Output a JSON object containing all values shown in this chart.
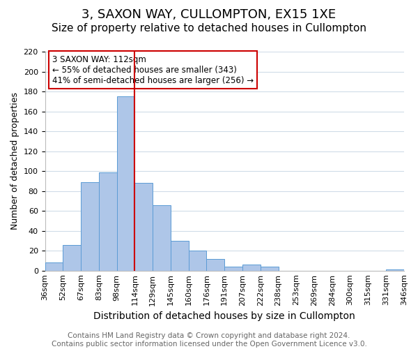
{
  "title": "3, SAXON WAY, CULLOMPTON, EX15 1XE",
  "subtitle": "Size of property relative to detached houses in Cullompton",
  "xlabel": "Distribution of detached houses by size in Cullompton",
  "ylabel": "Number of detached properties",
  "bar_labels": [
    "36sqm",
    "52sqm",
    "67sqm",
    "83sqm",
    "98sqm",
    "114sqm",
    "129sqm",
    "145sqm",
    "160sqm",
    "176sqm",
    "191sqm",
    "207sqm",
    "222sqm",
    "238sqm",
    "253sqm",
    "269sqm",
    "284sqm",
    "300sqm",
    "315sqm",
    "331sqm",
    "346sqm"
  ],
  "bar_values": [
    8,
    26,
    89,
    99,
    175,
    88,
    66,
    30,
    20,
    12,
    4,
    6,
    4,
    0,
    0,
    0,
    0,
    0,
    0,
    1
  ],
  "bar_color": "#aec6e8",
  "bar_edge_color": "#5b9bd5",
  "vline_x": 5.0,
  "vline_color": "#cc0000",
  "ylim": [
    0,
    220
  ],
  "yticks": [
    0,
    20,
    40,
    60,
    80,
    100,
    120,
    140,
    160,
    180,
    200,
    220
  ],
  "annotation_box_text": "3 SAXON WAY: 112sqm\n← 55% of detached houses are smaller (343)\n41% of semi-detached houses are larger (256) →",
  "annotation_box_facecolor": "#ffffff",
  "annotation_box_edgecolor": "#cc0000",
  "footer_line1": "Contains HM Land Registry data © Crown copyright and database right 2024.",
  "footer_line2": "Contains public sector information licensed under the Open Government Licence v3.0.",
  "background_color": "#ffffff",
  "grid_color": "#d0dce8",
  "title_fontsize": 13,
  "subtitle_fontsize": 11,
  "xlabel_fontsize": 10,
  "ylabel_fontsize": 9,
  "tick_fontsize": 8,
  "footer_fontsize": 7.5
}
